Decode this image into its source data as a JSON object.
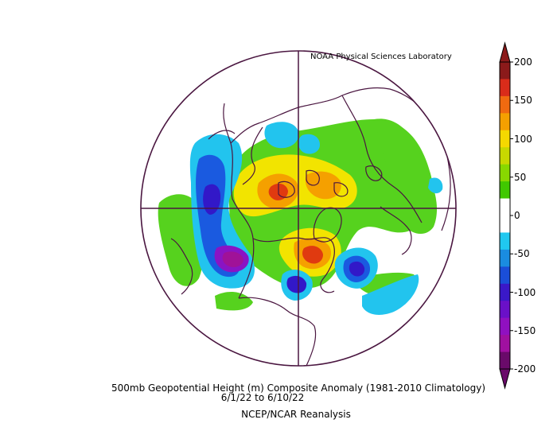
{
  "credit": "NOAA Physical Sciences Laboratory",
  "caption": {
    "line1": "500mb Geopotential Height (m) Composite Anomaly (1981-2010 Climatology)",
    "line2": "6/1/22  to 6/10/22",
    "line3": "NCEP/NCAR Reanalysis"
  },
  "colorbar": {
    "labels": [
      "200",
      "150",
      "100",
      "50",
      "0",
      "-50",
      "-100",
      "-150",
      "-200"
    ],
    "colors": [
      "#8b1a1a",
      "#d92c1a",
      "#f06a10",
      "#f5a000",
      "#f5d800",
      "#c8d800",
      "#88d800",
      "#40c800",
      "#ffffff",
      "#ffffff",
      "#20c8f0",
      "#1a8ce0",
      "#1a4ed8",
      "#3a18c8",
      "#6a10c8",
      "#9010c0",
      "#a010a0",
      "#6a0a6a"
    ],
    "top_arrow_color": "#8b1a1a",
    "bottom_arrow_color": "#6a0a6a"
  },
  "colors": {
    "outline": "#4a1640",
    "green": "#56d21e",
    "lightblue": "#22c4ee",
    "blue": "#1a5ae0",
    "indigo": "#3218c8",
    "violet": "#8a14c4",
    "magenta": "#a01298",
    "yellow": "#f2e400",
    "orange": "#f5a000",
    "red": "#e03a10"
  }
}
